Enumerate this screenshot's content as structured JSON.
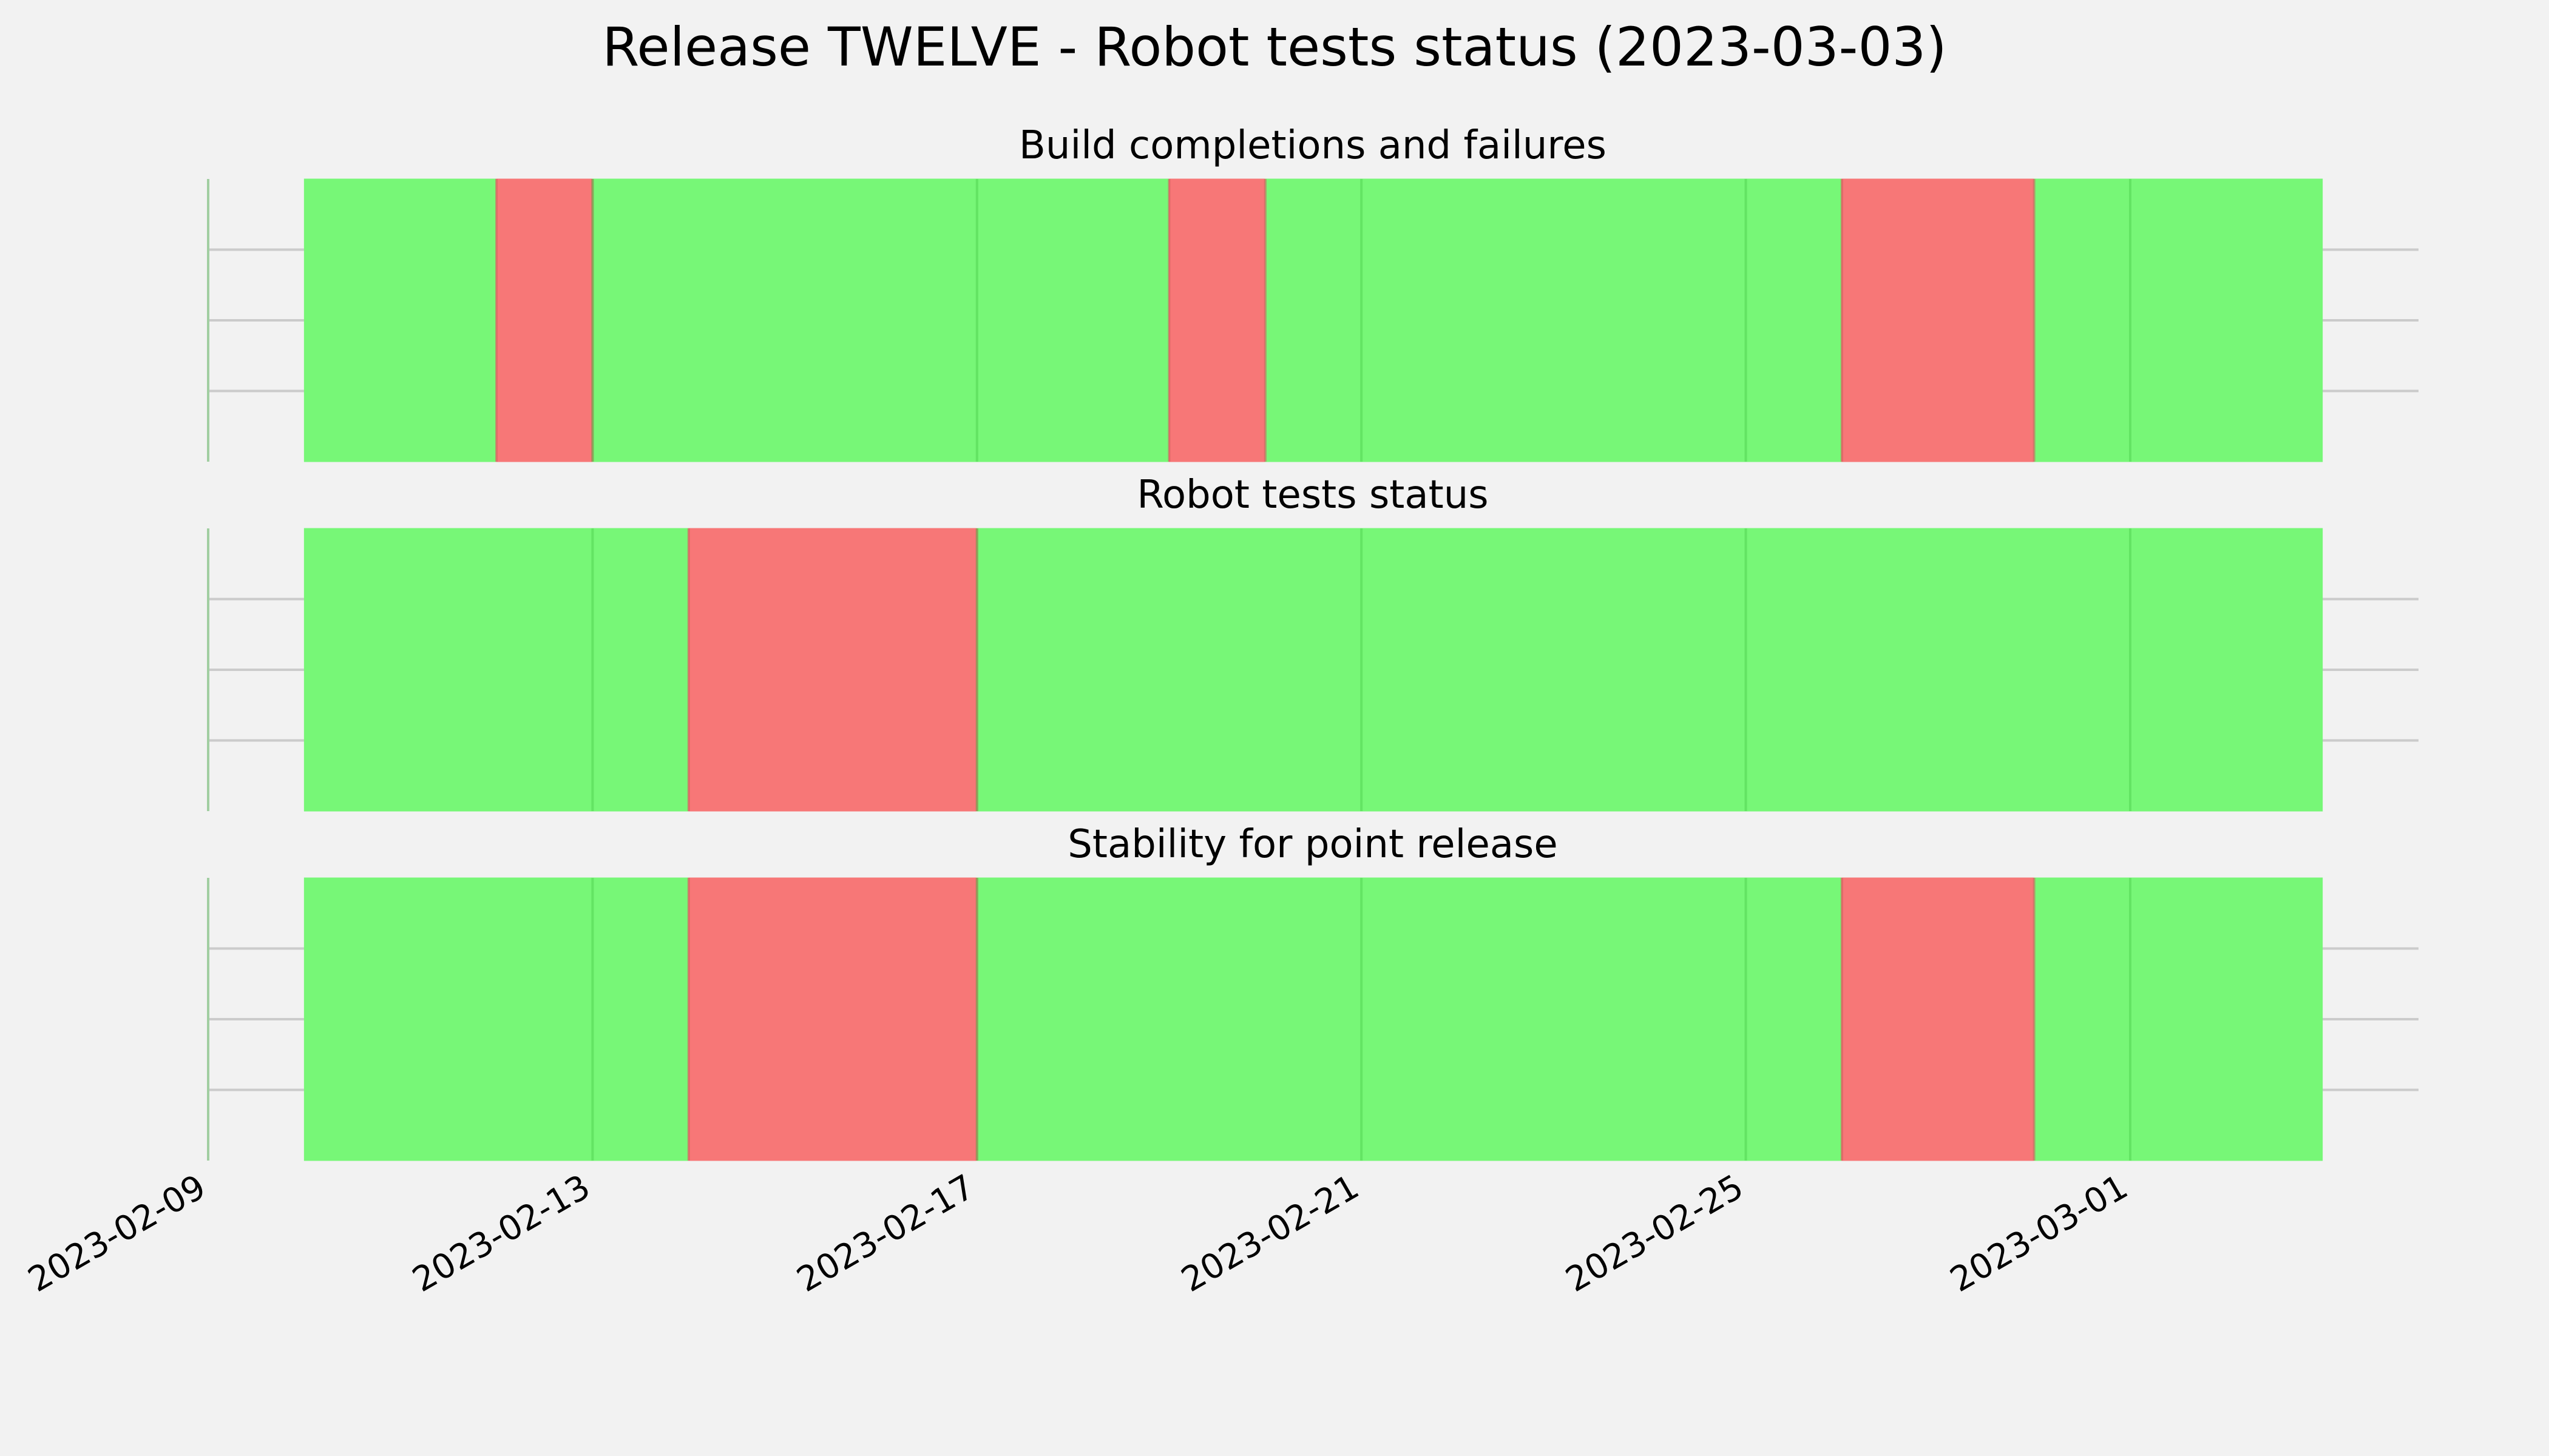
{
  "chart_data": {
    "type": "bar",
    "title": "Release TWELVE - Robot tests status (2023-03-03)",
    "x_range": [
      "2023-02-09",
      "2023-03-04"
    ],
    "x_ticks": [
      "2023-02-09",
      "2023-02-13",
      "2023-02-17",
      "2023-02-21",
      "2023-02-25",
      "2023-03-01"
    ],
    "grid": true,
    "colors": {
      "success": "#77f777",
      "failure": "#f77777"
    },
    "panels": [
      {
        "title": "Build completions and failures",
        "segments": [
          {
            "start": "2023-02-10",
            "end": "2023-02-12",
            "status": "success"
          },
          {
            "start": "2023-02-12",
            "end": "2023-02-13",
            "status": "failure"
          },
          {
            "start": "2023-02-13",
            "end": "2023-02-19",
            "status": "success"
          },
          {
            "start": "2023-02-19",
            "end": "2023-02-20",
            "status": "failure"
          },
          {
            "start": "2023-02-20",
            "end": "2023-02-26",
            "status": "success"
          },
          {
            "start": "2023-02-26",
            "end": "2023-02-28",
            "status": "failure"
          },
          {
            "start": "2023-02-28",
            "end": "2023-03-03",
            "status": "success"
          }
        ]
      },
      {
        "title": "Robot tests status",
        "segments": [
          {
            "start": "2023-02-10",
            "end": "2023-02-14",
            "status": "success"
          },
          {
            "start": "2023-02-14",
            "end": "2023-02-17",
            "status": "failure"
          },
          {
            "start": "2023-02-17",
            "end": "2023-03-03",
            "status": "success"
          }
        ]
      },
      {
        "title": "Stability for point release",
        "segments": [
          {
            "start": "2023-02-10",
            "end": "2023-02-14",
            "status": "success"
          },
          {
            "start": "2023-02-14",
            "end": "2023-02-17",
            "status": "failure"
          },
          {
            "start": "2023-02-17",
            "end": "2023-02-26",
            "status": "success"
          },
          {
            "start": "2023-02-26",
            "end": "2023-02-28",
            "status": "failure"
          },
          {
            "start": "2023-02-28",
            "end": "2023-03-03",
            "status": "success"
          }
        ]
      }
    ]
  }
}
